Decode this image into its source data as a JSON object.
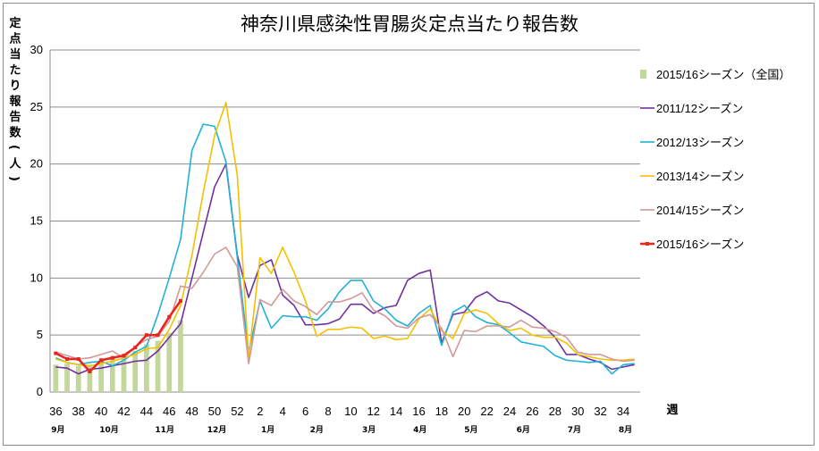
{
  "chart_data": {
    "type": "line",
    "title": "神奈川県感染性胃腸炎定点当たり報告数",
    "ylabel": "定点当たり報告数(人)",
    "xlabel": "週",
    "ylim": [
      0,
      30
    ],
    "yticks": [
      "0",
      "5",
      "10",
      "15",
      "20",
      "25",
      "30"
    ],
    "grid": "horizontal",
    "legend_position": "right",
    "week_labels": [
      "36",
      "38",
      "40",
      "42",
      "44",
      "46",
      "48",
      "50",
      "52",
      "2",
      "4",
      "6",
      "8",
      "10",
      "12",
      "14",
      "16",
      "18",
      "20",
      "22",
      "24",
      "26",
      "28",
      "30",
      "32",
      "34"
    ],
    "month_labels": [
      "9月",
      "10月",
      "11月",
      "12月",
      "1月",
      "2月",
      "3月",
      "4月",
      "5月",
      "6月",
      "7月",
      "8月"
    ],
    "weeks": [
      "36",
      "37",
      "38",
      "39",
      "40",
      "41",
      "42",
      "43",
      "44",
      "45",
      "46",
      "47",
      "48",
      "49",
      "50",
      "51",
      "52",
      "1",
      "2",
      "3",
      "4",
      "5",
      "6",
      "7",
      "8",
      "9",
      "10",
      "11",
      "12",
      "13",
      "14",
      "15",
      "16",
      "17",
      "18",
      "19",
      "20",
      "21",
      "22",
      "23",
      "24",
      "25",
      "26",
      "27",
      "28",
      "29",
      "30",
      "31",
      "32",
      "33",
      "34",
      "35"
    ],
    "series": [
      {
        "name": "2015/16シーズン（全国）",
        "kind": "bar",
        "color": "#c3d69b",
        "values": [
          2.4,
          2.5,
          2.3,
          2.4,
          2.8,
          3.0,
          3.2,
          3.6,
          4.2,
          4.5,
          5.2,
          6.3
        ]
      },
      {
        "name": "2011/12シーズン",
        "kind": "line",
        "color": "#7030a0",
        "values": [
          2.2,
          2.1,
          1.6,
          2.0,
          2.1,
          2.3,
          2.5,
          2.7,
          2.8,
          3.6,
          4.8,
          6.0,
          10.0,
          14.0,
          18.0,
          20.0,
          12.0,
          8.3,
          11.1,
          11.6,
          8.5,
          7.6,
          5.9,
          5.9,
          6.0,
          6.4,
          7.7,
          7.7,
          6.9,
          7.4,
          7.6,
          9.8,
          10.4,
          10.7,
          4.3,
          6.8,
          7.0,
          8.3,
          8.8,
          8.0,
          7.8,
          7.2,
          6.6,
          5.8,
          4.8,
          3.3,
          3.3,
          2.9,
          2.6,
          2.0,
          2.2,
          2.4
        ]
      },
      {
        "name": "2012/13シーズン",
        "kind": "line",
        "color": "#1fb2d8",
        "values": [
          3.0,
          2.6,
          2.4,
          2.6,
          2.7,
          2.3,
          2.8,
          3.5,
          4.0,
          6.8,
          10.0,
          13.4,
          21.2,
          23.5,
          23.3,
          20.2,
          11.8,
          3.5,
          8.0,
          5.6,
          6.7,
          6.6,
          6.6,
          6.3,
          7.3,
          8.8,
          9.8,
          9.8,
          8.0,
          7.3,
          6.3,
          5.8,
          6.9,
          7.6,
          4.1,
          7.0,
          7.6,
          6.6,
          6.1,
          5.9,
          5.2,
          4.4,
          4.2,
          4.0,
          3.2,
          2.8,
          2.7,
          2.6,
          2.7,
          1.6,
          2.4,
          2.5
        ]
      },
      {
        "name": "2013/14シーズン",
        "kind": "line",
        "color": "#f5c000",
        "values": [
          2.9,
          2.6,
          2.4,
          2.3,
          2.5,
          2.7,
          3.0,
          3.3,
          3.8,
          3.9,
          5.5,
          7.6,
          12.0,
          17.5,
          22.5,
          25.4,
          19.0,
          3.0,
          11.8,
          10.4,
          12.7,
          10.5,
          8.0,
          4.9,
          5.5,
          5.5,
          5.7,
          5.6,
          4.7,
          4.9,
          4.6,
          4.7,
          6.4,
          7.3,
          5.4,
          4.7,
          6.9,
          7.2,
          6.9,
          6.0,
          5.4,
          5.6,
          5.0,
          4.8,
          4.8,
          4.3,
          3.3,
          3.1,
          2.9,
          2.8,
          2.8,
          2.9
        ]
      },
      {
        "name": "2014/15シーズン",
        "kind": "line",
        "color": "#d09a9a",
        "values": [
          3.5,
          3.2,
          2.9,
          3.0,
          3.3,
          3.6,
          3.0,
          4.0,
          4.6,
          4.9,
          6.2,
          9.3,
          9.1,
          10.5,
          12.1,
          12.7,
          11.0,
          2.5,
          8.1,
          7.6,
          9.0,
          8.0,
          7.5,
          6.8,
          7.9,
          7.9,
          8.2,
          8.7,
          7.2,
          6.7,
          5.8,
          5.6,
          6.5,
          6.8,
          5.6,
          3.1,
          5.4,
          5.3,
          5.8,
          5.8,
          5.7,
          6.3,
          5.7,
          5.6,
          5.3,
          4.8,
          3.5,
          3.3,
          3.3,
          2.9,
          2.7,
          2.8
        ]
      },
      {
        "name": "2015/16シーズン",
        "kind": "line",
        "color": "#e8251e",
        "marker": true,
        "values": [
          3.4,
          2.9,
          2.9,
          1.8,
          2.8,
          3.0,
          3.2,
          3.9,
          5.0,
          5.0,
          6.6,
          8.0
        ]
      }
    ]
  }
}
